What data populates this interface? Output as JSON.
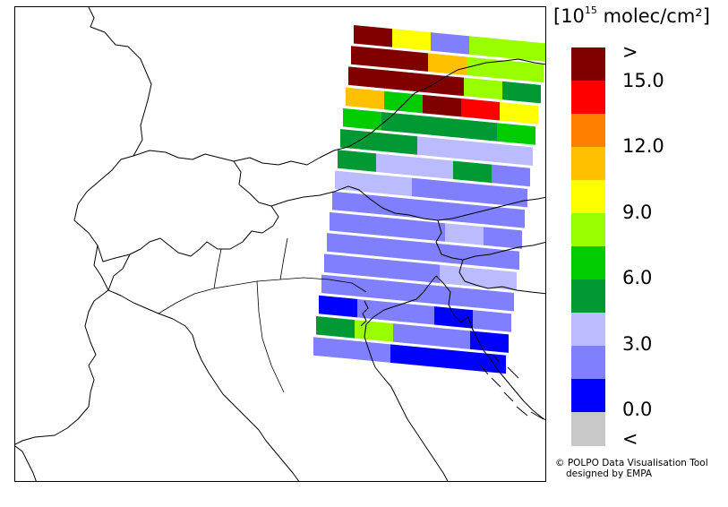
{
  "colorbar": {
    "unit_base": "[10",
    "unit_exp": "15",
    "unit_rest": " molec/cm²]",
    "labels": [
      ">",
      "15.0",
      "12.0",
      "9.0",
      "6.0",
      "3.0",
      "0.0",
      "<"
    ],
    "colors": [
      "#800000",
      "#ff0000",
      "#ff8000",
      "#ffc000",
      "#ffff00",
      "#99ff00",
      "#00cc00",
      "#009933",
      "#bbbbff",
      "#8080ff",
      "#0000ff",
      "#c8c8c8"
    ]
  },
  "credit": {
    "line1": "© POLPO Data Visualisation Tool",
    "line2": "designed by EMPA"
  },
  "map": {
    "swath_rows": [
      [
        "#800000",
        "#ffff00",
        "#8080ff",
        "#99ff00",
        "#99ff00"
      ],
      [
        "#800000",
        "#800000",
        "#ffc000",
        "#99ff00",
        "#99ff00"
      ],
      [
        "#800000",
        "#800000",
        "#800000",
        "#99ff00",
        "#009933"
      ],
      [
        "#ffc000",
        "#00cc00",
        "#800000",
        "#ff0000",
        "#ffff00"
      ],
      [
        "#00cc00",
        "#009933",
        "#009933",
        "#009933",
        "#00cc00"
      ],
      [
        "#009933",
        "#009933",
        "#bbbbff",
        "#bbbbff",
        "#bbbbff"
      ],
      [
        "#009933",
        "#bbbbff",
        "#bbbbff",
        "#009933",
        "#8080ff"
      ],
      [
        "#bbbbff",
        "#bbbbff",
        "#8080ff",
        "#8080ff",
        "#8080ff"
      ],
      [
        "#8080ff",
        "#8080ff",
        "#8080ff",
        "#8080ff",
        "#8080ff"
      ],
      [
        "#8080ff",
        "#8080ff",
        "#8080ff",
        "#bbbbff",
        "#8080ff"
      ],
      [
        "#8080ff",
        "#8080ff",
        "#8080ff",
        "#8080ff",
        "#8080ff"
      ],
      [
        "#8080ff",
        "#8080ff",
        "#8080ff",
        "#bbbbff",
        "#bbbbff"
      ],
      [
        "#8080ff",
        "#8080ff",
        "#8080ff",
        "#8080ff",
        "#8080ff"
      ],
      [
        "#0000ff",
        "#8080ff",
        "#8080ff",
        "#0000ff",
        "#8080ff"
      ],
      [
        "#009933",
        "#99ff00",
        "#8080ff",
        "#8080ff",
        "#0000ff"
      ],
      [
        "#8080ff",
        "#8080ff",
        "#0000ff",
        "#0000ff",
        "#0000ff"
      ]
    ]
  }
}
